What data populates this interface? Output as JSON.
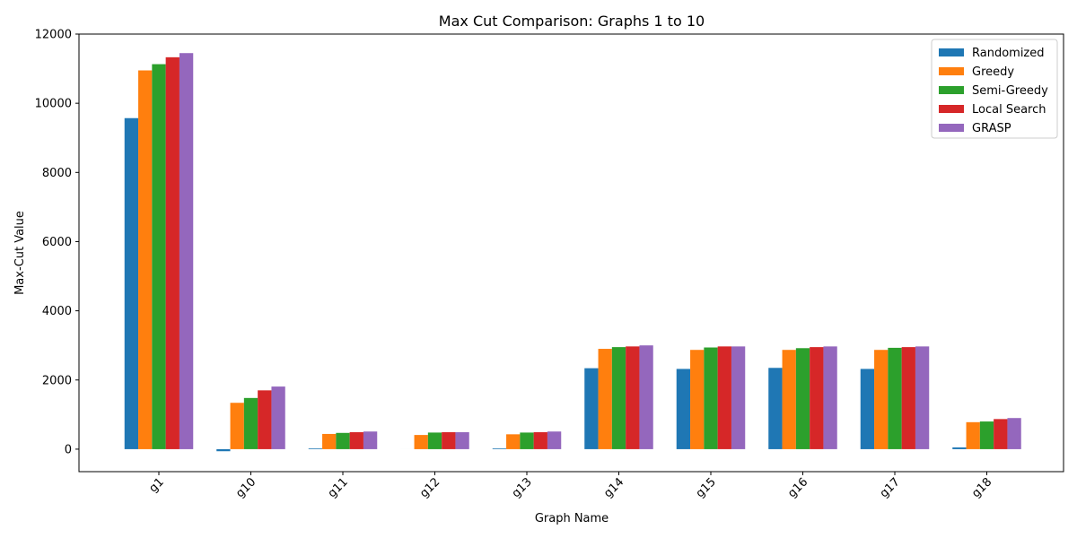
{
  "chart_data": {
    "type": "bar",
    "title": "Max Cut Comparison: Graphs 1 to 10",
    "xlabel": "Graph Name",
    "ylabel": "Max-Cut Value",
    "ylim": [
      -650,
      12000
    ],
    "yticks": [
      0,
      2000,
      4000,
      6000,
      8000,
      10000,
      12000
    ],
    "categories": [
      "g1",
      "g10",
      "g11",
      "g12",
      "g13",
      "g14",
      "g15",
      "g16",
      "g17",
      "g18"
    ],
    "legend_position": "top-right",
    "grid": false,
    "series": [
      {
        "name": "Randomized",
        "color": "#1f77b4",
        "values": [
          9570,
          -60,
          20,
          0,
          20,
          2340,
          2320,
          2350,
          2320,
          50
        ]
      },
      {
        "name": "Greedy",
        "color": "#ff7f0e",
        "values": [
          10950,
          1340,
          440,
          410,
          430,
          2900,
          2870,
          2870,
          2870,
          780
        ]
      },
      {
        "name": "Semi-Greedy",
        "color": "#2ca02c",
        "values": [
          11130,
          1480,
          470,
          480,
          480,
          2950,
          2940,
          2920,
          2930,
          800
        ]
      },
      {
        "name": "Local Search",
        "color": "#d62728",
        "values": [
          11330,
          1700,
          490,
          490,
          490,
          2970,
          2970,
          2950,
          2950,
          870
        ]
      },
      {
        "name": "GRASP",
        "color": "#9467bd",
        "values": [
          11450,
          1810,
          510,
          490,
          510,
          3000,
          2970,
          2970,
          2970,
          900
        ]
      }
    ]
  }
}
